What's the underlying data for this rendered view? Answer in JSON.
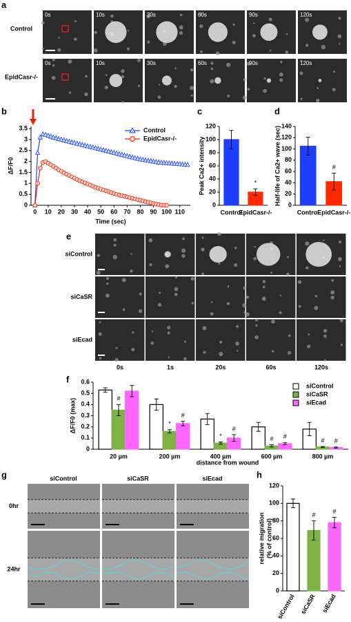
{
  "panel_labels": [
    "a",
    "b",
    "c",
    "d",
    "e",
    "f",
    "g",
    "h"
  ],
  "panel_a": {
    "rows": [
      "Control",
      "EpidCasr-/-"
    ],
    "times": [
      [
        "0s",
        "10s",
        "30s",
        "60s",
        "90s",
        "120s"
      ],
      [
        "0s",
        "10s",
        "30s",
        "60s",
        "90s",
        "120s"
      ]
    ]
  },
  "panel_e": {
    "rows": [
      "siControl",
      "siCaSR",
      "siEcad"
    ],
    "times": [
      "0s",
      "1s",
      "20s",
      "60s",
      "120s"
    ]
  },
  "panel_g": {
    "columns": [
      "siControl",
      "siCaSR",
      "siEcad"
    ],
    "rows": [
      "0hr",
      "24hr"
    ]
  },
  "chart_data": [
    {
      "type": "line",
      "xlabel": "Time (sec)",
      "ylabel": "ΔF/F0",
      "x": [
        0,
        2,
        4,
        6,
        8,
        10,
        12,
        14,
        16,
        18,
        20,
        22,
        24,
        26,
        28,
        30,
        32,
        34,
        36,
        38,
        40,
        42,
        44,
        46,
        48,
        50,
        52,
        54,
        56,
        58,
        60,
        62,
        64,
        66,
        68,
        70,
        72,
        74,
        76,
        78,
        80,
        82,
        84,
        86,
        88,
        90,
        92,
        94,
        96,
        98,
        100,
        102,
        104,
        106,
        108,
        110,
        112,
        114,
        116
      ],
      "series": [
        {
          "name": "Control",
          "color": "#1f3fff",
          "marker": "triangle",
          "values": [
            0,
            2.4,
            3.1,
            3.25,
            3.22,
            3.18,
            3.14,
            3.1,
            3.07,
            3.03,
            3.0,
            2.97,
            2.94,
            2.91,
            2.88,
            2.85,
            2.82,
            2.79,
            2.76,
            2.73,
            2.7,
            2.67,
            2.64,
            2.61,
            2.58,
            2.55,
            2.52,
            2.49,
            2.46,
            2.43,
            2.4,
            2.37,
            2.34,
            2.31,
            2.28,
            2.25,
            2.22,
            2.19,
            2.16,
            2.13,
            2.1,
            2.08,
            2.06,
            2.04,
            2.02,
            2.0,
            1.98,
            1.96,
            1.95,
            1.94,
            1.93,
            1.92,
            1.91,
            1.9,
            1.89,
            1.88,
            1.87,
            1.86,
            1.85
          ]
        },
        {
          "name": "EpidCasr-/-",
          "color": "#ee2200",
          "marker": "circle",
          "values": [
            0,
            1.0,
            1.7,
            1.95,
            2.0,
            1.92,
            1.85,
            1.78,
            1.7,
            1.62,
            1.55,
            1.48,
            1.42,
            1.36,
            1.3,
            1.24,
            1.18,
            1.12,
            1.07,
            1.02,
            0.97,
            0.92,
            0.87,
            0.82,
            0.78,
            0.74,
            0.7,
            0.66,
            0.62,
            0.58,
            0.54,
            0.5,
            0.47,
            0.44,
            0.41,
            0.38,
            0.35,
            0.32,
            0.29,
            0.26,
            0.23,
            0.2,
            0.17,
            0.14,
            0.11,
            0.08,
            0.05,
            0.03,
            0.01,
            0,
            0,
            null,
            null,
            null,
            null,
            null,
            null,
            null,
            null
          ]
        }
      ],
      "xlim": [
        -3,
        118
      ],
      "xticks": [
        0,
        10,
        20,
        30,
        40,
        50,
        60,
        70,
        80,
        90,
        100,
        110
      ],
      "ylim": [
        0,
        3.6
      ],
      "yticks": [
        0,
        0.5,
        1,
        1.5,
        2,
        2.5,
        3,
        3.5
      ],
      "legend": "top-right"
    },
    {
      "type": "bar",
      "ylabel": "Peak Ca2+ intensity",
      "categories": [
        "Control",
        "EpidCasr-/-"
      ],
      "values": [
        100,
        20
      ],
      "errors": [
        14,
        5
      ],
      "colors": [
        "#1f3fff",
        "#ff2a00"
      ],
      "annotations": [
        null,
        "*"
      ],
      "ylim": [
        0,
        120
      ],
      "yticks": [
        0,
        20,
        40,
        60,
        80,
        100,
        120
      ]
    },
    {
      "type": "bar",
      "ylabel": "Half-life of Ca2+ wave (sec)",
      "categories": [
        "Control",
        "EpidCasr-/-"
      ],
      "values": [
        105,
        42
      ],
      "errors": [
        16,
        15
      ],
      "colors": [
        "#1f3fff",
        "#ff2a00"
      ],
      "annotations": [
        null,
        "#"
      ],
      "ylim": [
        0,
        140
      ],
      "yticks": [
        0,
        20,
        40,
        60,
        80,
        100,
        120,
        140
      ]
    },
    {
      "type": "bar",
      "ylabel": "ΔF/F0 (max)",
      "xlabel": "distance from wound",
      "categories": [
        "20 µm",
        "200 µm",
        "400 µm",
        "600 µm",
        "800 µm"
      ],
      "series": [
        {
          "name": "siControl",
          "color": "#ffffff",
          "values": [
            0.53,
            0.4,
            0.27,
            0.2,
            0.18
          ],
          "errors": [
            0.02,
            0.05,
            0.05,
            0.04,
            0.06
          ],
          "annotations": [
            null,
            null,
            null,
            null,
            null
          ]
        },
        {
          "name": "siCaSR",
          "color": "#7cb342",
          "values": [
            0.35,
            0.16,
            0.055,
            0.03,
            0.02
          ],
          "errors": [
            0.05,
            0.015,
            0.01,
            0.01,
            0.005
          ],
          "annotations": [
            "#",
            "*",
            "*",
            "#",
            "#"
          ]
        },
        {
          "name": "siEcad",
          "color": "#ff66ff",
          "values": [
            0.52,
            0.23,
            0.1,
            0.05,
            0.015
          ],
          "errors": [
            0.05,
            0.02,
            0.03,
            0.01,
            0.005
          ],
          "annotations": [
            null,
            "#",
            "#",
            "#",
            "#"
          ]
        }
      ],
      "ylim": [
        0,
        0.6
      ],
      "yticks": [
        0,
        0.1,
        0.2,
        0.3,
        0.4,
        0.5,
        0.6
      ],
      "legend": "top-right"
    },
    {
      "type": "bar",
      "ylabel": [
        "relative migration",
        "(% of control)"
      ],
      "categories": [
        "siControl",
        "siCaSR",
        "siEcad"
      ],
      "values": [
        100,
        69,
        78
      ],
      "errors": [
        5,
        11,
        6
      ],
      "colors": [
        "#ffffff",
        "#7cb342",
        "#ff66ff"
      ],
      "annotations": [
        null,
        "#",
        "#"
      ],
      "ylim": [
        0,
        120
      ],
      "yticks": [
        0,
        20,
        40,
        60,
        80,
        100,
        120
      ]
    }
  ]
}
